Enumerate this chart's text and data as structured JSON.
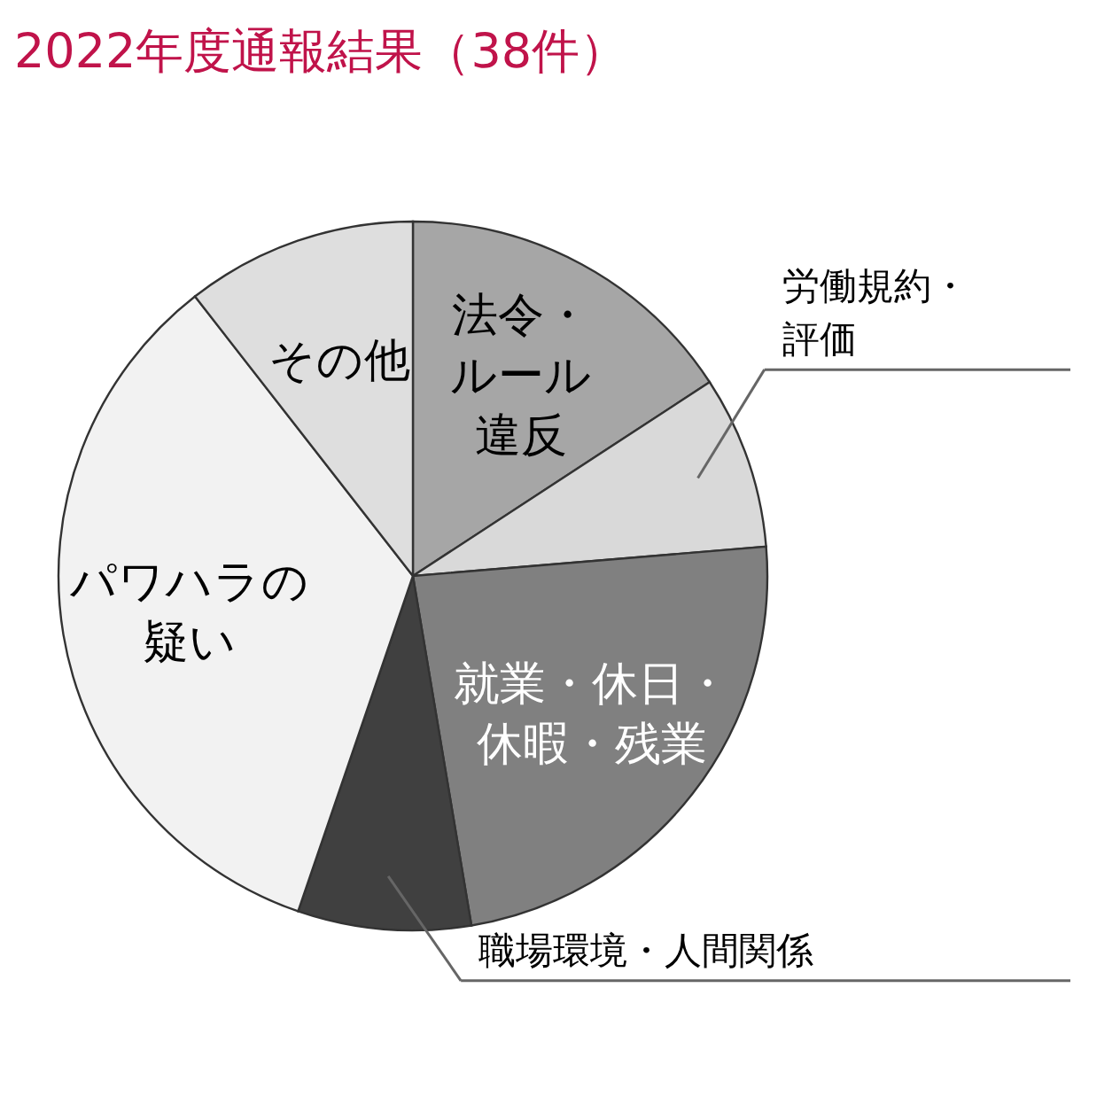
{
  "chart_data": {
    "type": "pie",
    "title": "2022年度通報結果（38件）",
    "categories": [
      "法令・ルール違反",
      "労働規約・評価",
      "就業・休日・休暇・残業",
      "職場環境・人間関係",
      "パワハラの疑い",
      "その他"
    ],
    "values": [
      15.79,
      7.89,
      23.68,
      7.89,
      34.21,
      10.54
    ],
    "colors": [
      "#a6a6a6",
      "#d9d9d9",
      "#808080",
      "#404040",
      "#f2f2f2",
      "#dedede"
    ],
    "legend": false
  }
}
